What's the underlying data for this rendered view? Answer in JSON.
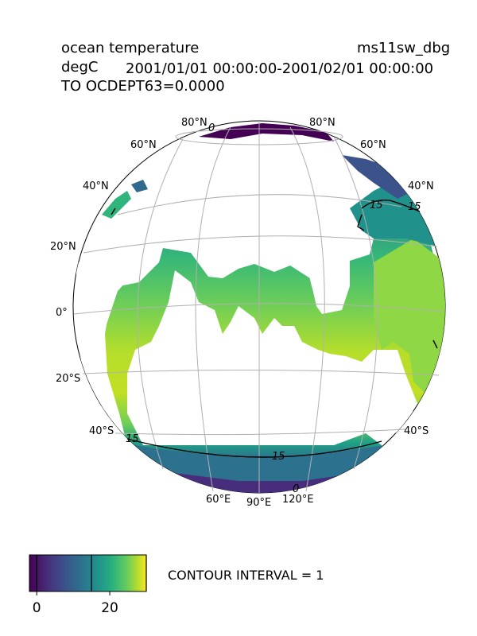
{
  "header": {
    "variable": "ocean temperature",
    "case": "ms11sw_dbg",
    "units": "degC",
    "time_range": "2001/01/01 00:00:00-2001/02/01 00:00:00",
    "level": "TO OCDEPT63=0.0000"
  },
  "map": {
    "projection": "orthographic",
    "lat_labels": [
      "80°N",
      "60°N",
      "40°N",
      "20°N",
      "0°",
      "20°S",
      "40°S"
    ],
    "lon_labels": [
      "60°E",
      "90°E",
      "120°E"
    ],
    "lat_labels_right": [
      "80°N",
      "60°N",
      "40°N",
      "40°S"
    ],
    "contour_labels": [
      "15",
      "15",
      "15",
      "15",
      "0",
      "0"
    ],
    "land_color": "#ffffff",
    "colormap": "viridis"
  },
  "colorbar": {
    "ticks": [
      "0",
      "20"
    ],
    "min": -2,
    "max": 30,
    "contour_lines": [
      0,
      15,
      30
    ]
  },
  "contour_interval": "CONTOUR INTERVAL = 1"
}
